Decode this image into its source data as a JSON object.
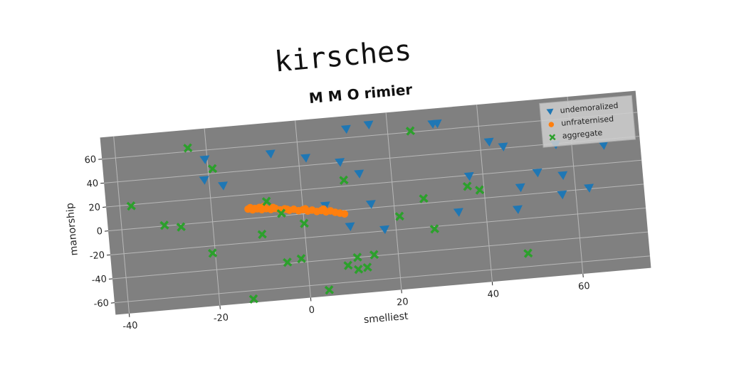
{
  "chart_data": {
    "type": "scatter",
    "title": "kirsches",
    "subtitle": "M M O rimier",
    "x_label": "smelliest",
    "y_label": "manorship",
    "xlim": [
      -43,
      75
    ],
    "ylim": [
      -70,
      78
    ],
    "xticks": [
      -40,
      -20,
      0,
      20,
      40,
      60
    ],
    "yticks": [
      -60,
      -40,
      -20,
      0,
      20,
      40,
      60
    ],
    "grid": true,
    "legend": "upper right",
    "series": [
      {
        "name": "undemoralized",
        "color": "#1f77b4",
        "marker": "triangle_down",
        "x": [
          -20.5,
          -21,
          -17,
          -6,
          1.6,
          9,
          13,
          11,
          16,
          30,
          31,
          10,
          15,
          17.5,
          5,
          34,
          37,
          42,
          45,
          47,
          48,
          52,
          56.5,
          57.5,
          57,
          63,
          67
        ],
        "y": [
          52,
          35,
          29,
          52,
          46,
          40,
          29,
          67,
          69,
          65,
          65,
          -14,
          3,
          -19,
          5,
          -10,
          19,
          46,
          41,
          -12,
          6,
          17,
          39,
          13,
          -3,
          0.6,
          35
        ]
      },
      {
        "name": "unfraternised",
        "color": "#ff7f0e",
        "marker": "circle",
        "x": [
          -12,
          -11.5,
          -11,
          -10.5,
          -10,
          -9.5,
          -9,
          -8,
          -7,
          -6,
          -5,
          -4,
          -3,
          -2,
          -1,
          0,
          1,
          2,
          3,
          4,
          5,
          6,
          7,
          8,
          9,
          -8.5,
          -6.5,
          -3.5,
          0.5,
          4.5
        ],
        "y": [
          8,
          9,
          7,
          8,
          7.5,
          8.5,
          6.5,
          7,
          6,
          6.5,
          5,
          5.5,
          4,
          4.5,
          3,
          3.5,
          2,
          2.5,
          1,
          1.5,
          0,
          0.5,
          -1,
          -2,
          -3,
          9,
          7.5,
          5,
          4,
          2.5
        ]
      },
      {
        "name": "aggregate",
        "color": "#2ca02c",
        "marker": "x",
        "x": [
          -24,
          -19,
          -37.5,
          -30.6,
          -27,
          -20.6,
          -12.5,
          -9.4,
          -7.8,
          -4.8,
          -4.4,
          -1.3,
          0,
          4.2,
          9.5,
          8.8,
          11,
          11,
          13,
          14.7,
          21,
          25,
          26.6,
          28.4,
          36.4,
          39,
          48.4
        ],
        "y": [
          63,
          44,
          19,
          0.6,
          -2,
          -26,
          -67,
          -14,
          13,
          2,
          -39,
          -37,
          -8,
          -65,
          25,
          -46,
          -40,
          -50,
          -49,
          -39,
          -9,
          61,
          4,
          -22,
          11,
          7,
          -49
        ]
      }
    ]
  }
}
